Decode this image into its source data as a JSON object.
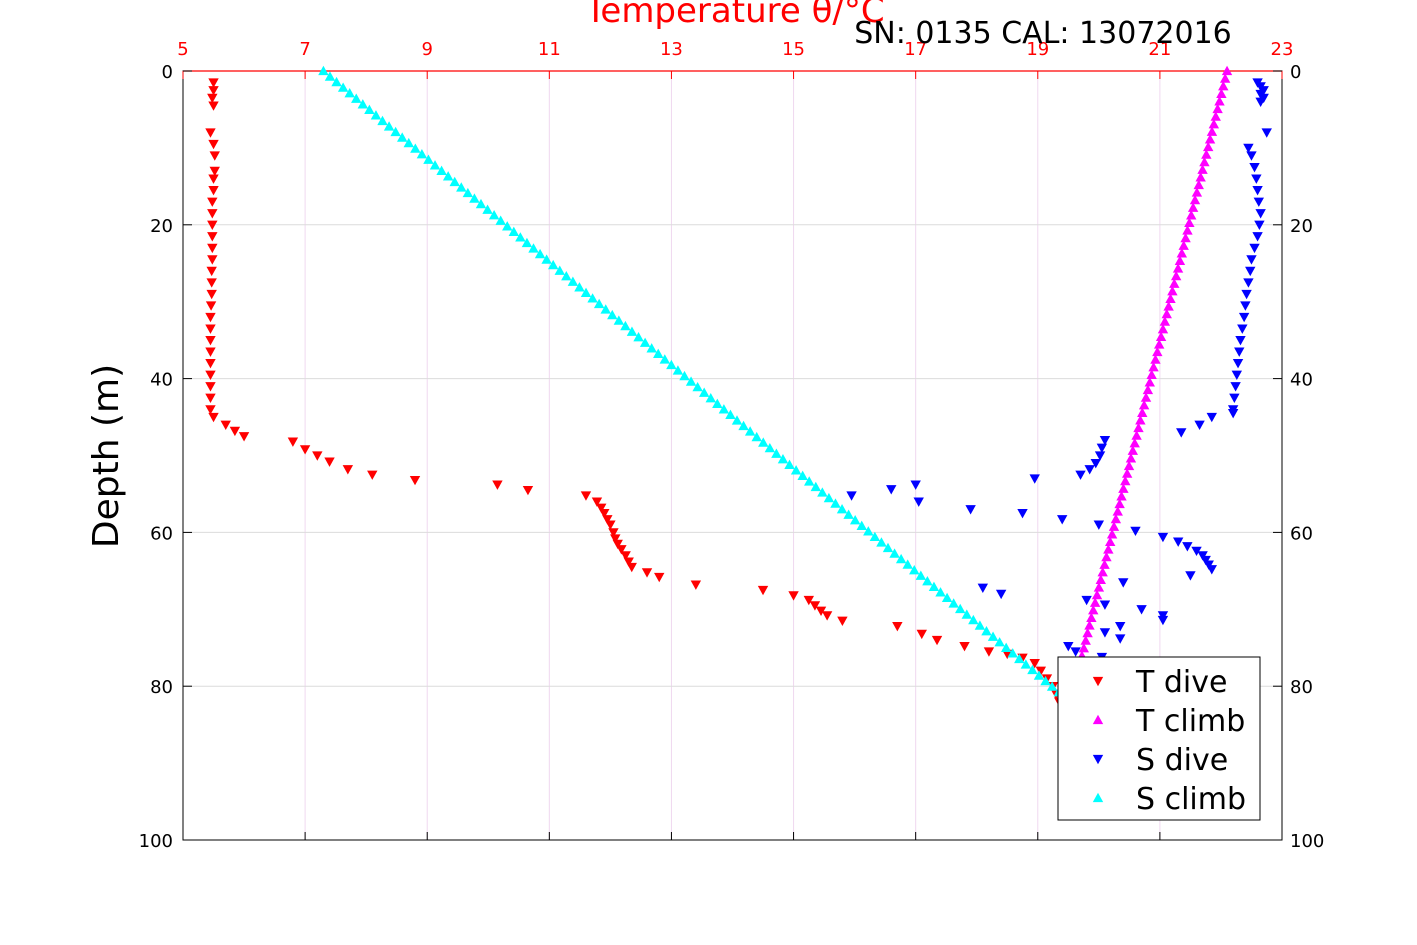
{
  "chart_data": {
    "type": "scatter",
    "title": "Temperature θ/°C",
    "subtitle": "SN: 0135  CAL: 13072016",
    "xlabel": "Temperature θ/°C",
    "ylabel": "Depth (m)",
    "x_ticks": [
      "5",
      "7",
      "9",
      "11",
      "13",
      "15",
      "17",
      "19",
      "21",
      "23"
    ],
    "y_ticks_left": [
      "0",
      "20",
      "40",
      "60",
      "80",
      "100"
    ],
    "y_ticks_right": [
      "0",
      "20",
      "40",
      "60",
      "80",
      "100"
    ],
    "xlim": [
      5,
      23
    ],
    "ylim": [
      0,
      100
    ],
    "y_inverted": true,
    "grid": true,
    "legend_position": "bottom-right",
    "colors": {
      "axis_top": "#ff0000",
      "grid": "#d9d9d9"
    },
    "series": [
      {
        "name": "T dive",
        "color": "#ff0000",
        "marker": "triangle-down",
        "x_axis": "temperature",
        "points": [
          [
            5.5,
            1.5
          ],
          [
            5.5,
            2.5
          ],
          [
            5.48,
            3.5
          ],
          [
            5.5,
            4.5
          ],
          [
            5.45,
            8
          ],
          [
            5.5,
            9.5
          ],
          [
            5.52,
            11
          ],
          [
            5.52,
            13
          ],
          [
            5.5,
            14
          ],
          [
            5.5,
            15.5
          ],
          [
            5.48,
            17
          ],
          [
            5.48,
            18.5
          ],
          [
            5.48,
            20
          ],
          [
            5.48,
            21.5
          ],
          [
            5.48,
            23
          ],
          [
            5.48,
            24.5
          ],
          [
            5.47,
            26
          ],
          [
            5.47,
            27.5
          ],
          [
            5.47,
            29
          ],
          [
            5.46,
            30.5
          ],
          [
            5.45,
            32
          ],
          [
            5.45,
            33.5
          ],
          [
            5.45,
            35
          ],
          [
            5.45,
            36.5
          ],
          [
            5.45,
            38
          ],
          [
            5.45,
            39.5
          ],
          [
            5.45,
            41
          ],
          [
            5.45,
            42.5
          ],
          [
            5.45,
            44
          ],
          [
            5.5,
            45
          ],
          [
            5.7,
            46
          ],
          [
            5.85,
            46.8
          ],
          [
            6.0,
            47.5
          ],
          [
            6.8,
            48.2
          ],
          [
            7.0,
            49.2
          ],
          [
            7.2,
            50
          ],
          [
            7.4,
            50.8
          ],
          [
            7.7,
            51.8
          ],
          [
            8.1,
            52.5
          ],
          [
            8.8,
            53.2
          ],
          [
            10.15,
            53.8
          ],
          [
            10.65,
            54.5
          ],
          [
            11.6,
            55.2
          ],
          [
            11.78,
            56
          ],
          [
            11.85,
            56.8
          ],
          [
            11.9,
            57.5
          ],
          [
            11.95,
            58.3
          ],
          [
            12.0,
            59
          ],
          [
            12.05,
            60
          ],
          [
            12.08,
            60.8
          ],
          [
            12.12,
            61.5
          ],
          [
            12.18,
            62.2
          ],
          [
            12.25,
            63
          ],
          [
            12.3,
            63.8
          ],
          [
            12.35,
            64.5
          ],
          [
            12.6,
            65.2
          ],
          [
            12.8,
            65.8
          ],
          [
            13.4,
            66.8
          ],
          [
            14.5,
            67.5
          ],
          [
            15.0,
            68.2
          ],
          [
            15.25,
            68.8
          ],
          [
            15.35,
            69.5
          ],
          [
            15.45,
            70.2
          ],
          [
            15.55,
            70.8
          ],
          [
            15.8,
            71.5
          ],
          [
            16.7,
            72.2
          ],
          [
            17.1,
            73.2
          ],
          [
            17.35,
            74
          ],
          [
            17.8,
            74.8
          ],
          [
            18.2,
            75.5
          ],
          [
            18.5,
            75.8
          ],
          [
            18.75,
            76.3
          ],
          [
            18.95,
            77
          ],
          [
            19.05,
            78
          ],
          [
            19.15,
            79
          ],
          [
            19.25,
            80
          ],
          [
            19.3,
            81
          ],
          [
            19.35,
            82
          ]
        ]
      },
      {
        "name": "T climb",
        "color": "#ff00ff",
        "marker": "triangle-up",
        "x_axis": "temperature",
        "line": {
          "x_start": 22.1,
          "x_end": 19.6,
          "y_start": 0,
          "y_end": 80,
          "count": 82
        }
      },
      {
        "name": "S dive",
        "color": "#0000ff",
        "marker": "triangle-down",
        "x_axis": "temperature_scale_display",
        "points": [
          [
            22.6,
            1.5
          ],
          [
            22.65,
            2
          ],
          [
            22.7,
            2.5
          ],
          [
            22.65,
            3
          ],
          [
            22.7,
            3.5
          ],
          [
            22.65,
            4
          ],
          [
            22.75,
            8
          ],
          [
            22.45,
            10
          ],
          [
            22.5,
            11
          ],
          [
            22.55,
            12.5
          ],
          [
            22.58,
            14
          ],
          [
            22.6,
            15.5
          ],
          [
            22.62,
            17
          ],
          [
            22.65,
            18.5
          ],
          [
            22.63,
            20
          ],
          [
            22.6,
            21.5
          ],
          [
            22.55,
            23
          ],
          [
            22.5,
            24.5
          ],
          [
            22.48,
            26
          ],
          [
            22.45,
            27.5
          ],
          [
            22.42,
            29
          ],
          [
            22.4,
            30.5
          ],
          [
            22.38,
            32
          ],
          [
            22.35,
            33.5
          ],
          [
            22.32,
            35
          ],
          [
            22.3,
            36.5
          ],
          [
            22.28,
            38
          ],
          [
            22.26,
            39.5
          ],
          [
            22.24,
            41
          ],
          [
            22.22,
            42.5
          ],
          [
            22.2,
            44
          ],
          [
            22.2,
            44.5
          ],
          [
            21.85,
            45
          ],
          [
            21.65,
            46
          ],
          [
            21.35,
            47
          ],
          [
            20.1,
            48
          ],
          [
            20.05,
            49
          ],
          [
            20.02,
            50
          ],
          [
            19.95,
            51
          ],
          [
            19.85,
            51.8
          ],
          [
            19.7,
            52.5
          ],
          [
            18.95,
            53
          ],
          [
            17.0,
            53.8
          ],
          [
            16.6,
            54.4
          ],
          [
            15.95,
            55.2
          ],
          [
            17.05,
            56
          ],
          [
            17.9,
            57
          ],
          [
            18.75,
            57.5
          ],
          [
            19.4,
            58.3
          ],
          [
            20.0,
            59
          ],
          [
            20.6,
            59.8
          ],
          [
            21.05,
            60.6
          ],
          [
            21.3,
            61.2
          ],
          [
            21.45,
            61.8
          ],
          [
            21.6,
            62.4
          ],
          [
            21.7,
            63
          ],
          [
            21.75,
            63.6
          ],
          [
            21.8,
            64.2
          ],
          [
            21.85,
            64.8
          ],
          [
            21.5,
            65.6
          ],
          [
            20.4,
            66.5
          ],
          [
            18.1,
            67.2
          ],
          [
            18.4,
            68
          ],
          [
            19.8,
            68.8
          ],
          [
            20.1,
            69.4
          ],
          [
            20.7,
            70
          ],
          [
            21.05,
            70.8
          ],
          [
            21.05,
            71.4
          ],
          [
            20.35,
            72.2
          ],
          [
            20.1,
            73
          ],
          [
            20.35,
            73.8
          ],
          [
            19.5,
            74.8
          ],
          [
            19.62,
            75.5
          ],
          [
            20.05,
            76.2
          ]
        ]
      },
      {
        "name": "S climb",
        "color": "#00ffff",
        "marker": "triangle-up",
        "x_axis": "temperature_scale_display",
        "line": {
          "x_start": 7.3,
          "x_end": 19.45,
          "y_start": 0,
          "y_end": 81.5,
          "count": 114
        }
      }
    ]
  }
}
